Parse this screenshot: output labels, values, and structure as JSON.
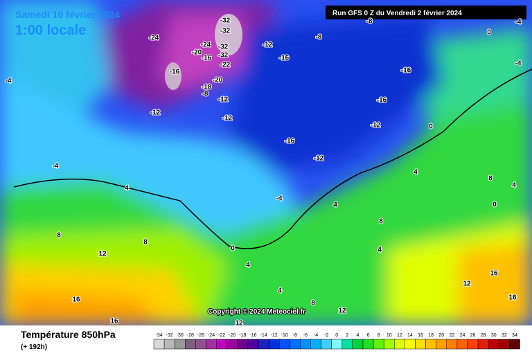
{
  "header": {
    "date": "Samedi 10 février 2024",
    "time": "1:00 locale",
    "run": "Run GFS 0 Z du Vendredi 2 février 2024"
  },
  "map": {
    "copyright": "Copyright © 2024 Meteociel.fr",
    "labels": [
      -24,
      -32,
      -32,
      -24,
      -20,
      -16,
      -32,
      -32,
      -22,
      -16,
      -20,
      -18,
      -8,
      -12,
      -12,
      -12,
      -12,
      -16,
      -8,
      -8,
      -16,
      -12,
      -16,
      -12,
      -16,
      0,
      -4,
      0,
      -4,
      4,
      -4,
      4,
      4,
      4,
      8,
      12,
      8,
      8,
      12,
      16,
      16,
      16,
      16,
      12,
      8,
      4,
      0,
      4,
      8,
      0,
      -4,
      4,
      -4,
      12
    ]
  },
  "footer": {
    "title": "Température 850hPa",
    "subtitle": "(+ 192h)"
  },
  "legend": {
    "values": [
      -34,
      -32,
      -30,
      -28,
      -26,
      -24,
      -22,
      -20,
      -18,
      -16,
      -14,
      -12,
      -10,
      -8,
      -6,
      -4,
      -2,
      0,
      2,
      4,
      6,
      8,
      10,
      12,
      14,
      16,
      18,
      20,
      22,
      24,
      26,
      28,
      30,
      32,
      34
    ],
    "colors": [
      "#d8d8d8",
      "#b8b8b8",
      "#989898",
      "#806080",
      "#905090",
      "#a030a0",
      "#c000c0",
      "#a000a0",
      "#700090",
      "#5000a0",
      "#2020c0",
      "#0030e0",
      "#0050ff",
      "#0070ff",
      "#0090ff",
      "#00b0ff",
      "#40d0ff",
      "#80ffff",
      "#00e0a0",
      "#00d040",
      "#20e020",
      "#60f000",
      "#a0ff00",
      "#e0ff00",
      "#ffff00",
      "#ffe000",
      "#ffc000",
      "#ffa000",
      "#ff8000",
      "#ff6000",
      "#ff4000",
      "#e02000",
      "#c00000",
      "#a00000",
      "#600000"
    ]
  }
}
